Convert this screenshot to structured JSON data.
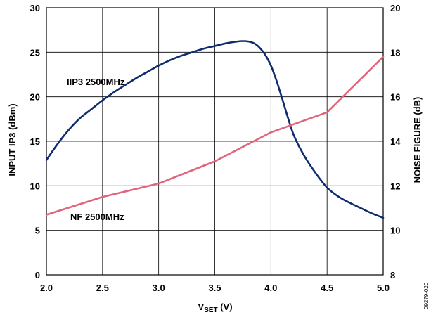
{
  "chart_data": {
    "type": "line",
    "xlabel": {
      "main": "V",
      "sub": "SET",
      "unit": " (V)"
    },
    "ylabel_left": "INPUT IP3 (dBm)",
    "ylabel_right": "NOISE FIGURE (dB)",
    "xlim": [
      2.0,
      5.0
    ],
    "ylim_left": [
      0,
      30
    ],
    "ylim_right": [
      8,
      20
    ],
    "x_ticks": [
      "2.0",
      "2.5",
      "3.0",
      "3.5",
      "4.0",
      "4.5",
      "5.0"
    ],
    "y_left_ticks": [
      "0",
      "5",
      "10",
      "15",
      "20",
      "25",
      "30"
    ],
    "y_right_ticks": [
      "8",
      "10",
      "12",
      "14",
      "16",
      "18",
      "20"
    ],
    "grid": true,
    "series": [
      {
        "name": "IIP3 2500MHz",
        "axis": "left",
        "color": "#0f2d6e",
        "points": [
          [
            2.0,
            12.9
          ],
          [
            2.1,
            14.7
          ],
          [
            2.2,
            16.3
          ],
          [
            2.3,
            17.6
          ],
          [
            2.4,
            18.6
          ],
          [
            2.5,
            19.6
          ],
          [
            2.6,
            20.5
          ],
          [
            2.7,
            21.3
          ],
          [
            2.8,
            22.1
          ],
          [
            2.9,
            22.8
          ],
          [
            3.0,
            23.5
          ],
          [
            3.1,
            24.1
          ],
          [
            3.2,
            24.6
          ],
          [
            3.3,
            25.0
          ],
          [
            3.4,
            25.4
          ],
          [
            3.5,
            25.7
          ],
          [
            3.6,
            26.0
          ],
          [
            3.7,
            26.2
          ],
          [
            3.75,
            26.25
          ],
          [
            3.8,
            26.2
          ],
          [
            3.85,
            26.0
          ],
          [
            3.9,
            25.5
          ],
          [
            3.95,
            24.7
          ],
          [
            4.0,
            23.5
          ],
          [
            4.05,
            21.8
          ],
          [
            4.1,
            19.8
          ],
          [
            4.2,
            15.8
          ],
          [
            4.3,
            13.3
          ],
          [
            4.4,
            11.4
          ],
          [
            4.5,
            9.8
          ],
          [
            4.6,
            8.8
          ],
          [
            4.7,
            8.1
          ],
          [
            4.8,
            7.5
          ],
          [
            4.9,
            6.9
          ],
          [
            5.0,
            6.4
          ]
        ]
      },
      {
        "name": "NF 2500MHz",
        "axis": "right",
        "color": "#e0647a",
        "points": [
          [
            2.0,
            10.7
          ],
          [
            2.5,
            11.5
          ],
          [
            3.0,
            12.1
          ],
          [
            3.5,
            13.1
          ],
          [
            4.0,
            14.4
          ],
          [
            4.5,
            15.3
          ],
          [
            5.0,
            17.8
          ]
        ]
      }
    ],
    "annotations": [
      {
        "text": "IIP3 2500MHz",
        "series": "IIP3 2500MHz"
      },
      {
        "text": "NF 2500MHz",
        "series": "NF 2500MHz"
      }
    ],
    "figure_id": "09279-020"
  }
}
